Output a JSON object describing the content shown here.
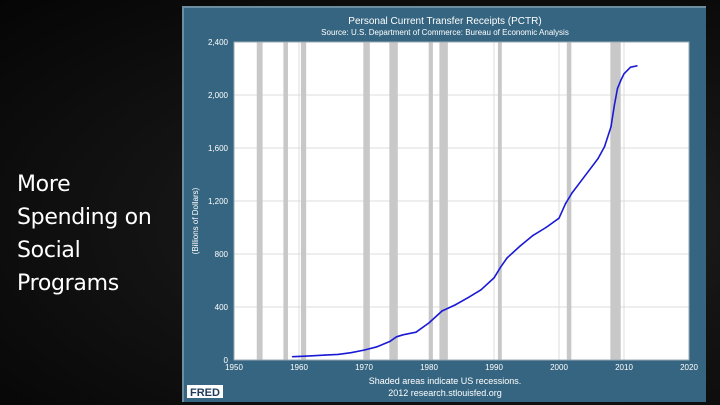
{
  "slide": {
    "caption_lines": [
      "More",
      "Spending on",
      "Social",
      "Programs"
    ]
  },
  "colors": {
    "panel": "#356580",
    "plot_bg": "#ffffff",
    "line": "#1a1ad6",
    "recession": "#c8c8c8",
    "grid": "#dcdcdc",
    "text": "#ffffff"
  },
  "chart_data": {
    "type": "line",
    "title": "Personal Current Transfer Receipts (PCTR)",
    "subtitle": "Source: U.S. Department of Commerce: Bureau of Economic Analysis",
    "ylabel": "(Billions of Dollars)",
    "xlabel": "Shaded areas indicate US recessions.",
    "footer": "2012 research.stlouisfed.org",
    "logo_text": "FRED",
    "xlim": [
      1950,
      2020
    ],
    "ylim": [
      0,
      2400
    ],
    "x_ticks": [
      1950,
      1960,
      1970,
      1980,
      1990,
      2000,
      2010,
      2020
    ],
    "x_tick_labels": [
      "1950",
      "1960",
      "1970",
      "1980",
      "1990",
      "2000",
      "2010",
      "2020"
    ],
    "y_ticks": [
      0,
      400,
      800,
      1200,
      1600,
      2000,
      2400
    ],
    "y_tick_labels": [
      "0",
      "400",
      "800",
      "1,200",
      "1,600",
      "2,000",
      "2,400"
    ],
    "grid": true,
    "recessions": [
      [
        1953.5,
        1954.4
      ],
      [
        1957.6,
        1958.3
      ],
      [
        1960.3,
        1961.1
      ],
      [
        1969.9,
        1970.9
      ],
      [
        1973.9,
        1975.2
      ],
      [
        1980.0,
        1980.6
      ],
      [
        1981.6,
        1982.9
      ],
      [
        1990.6,
        1991.2
      ],
      [
        2001.2,
        2001.9
      ],
      [
        2007.9,
        2009.5
      ]
    ],
    "series": [
      {
        "name": "PCTR",
        "x": [
          1959,
          1960,
          1962,
          1964,
          1966,
          1968,
          1970,
          1972,
          1974,
          1975,
          1976,
          1978,
          1980,
          1982,
          1984,
          1986,
          1988,
          1990,
          1991,
          1992,
          1994,
          1996,
          1998,
          2000,
          2001,
          2002,
          2004,
          2006,
          2007,
          2008,
          2008.5,
          2009,
          2009.5,
          2010,
          2011,
          2012
        ],
        "values": [
          25,
          27,
          32,
          37,
          42,
          55,
          75,
          100,
          140,
          175,
          190,
          210,
          280,
          370,
          415,
          470,
          530,
          620,
          700,
          770,
          860,
          940,
          1000,
          1070,
          1180,
          1260,
          1390,
          1520,
          1610,
          1760,
          1920,
          2050,
          2110,
          2160,
          2210,
          2220
        ]
      }
    ]
  }
}
